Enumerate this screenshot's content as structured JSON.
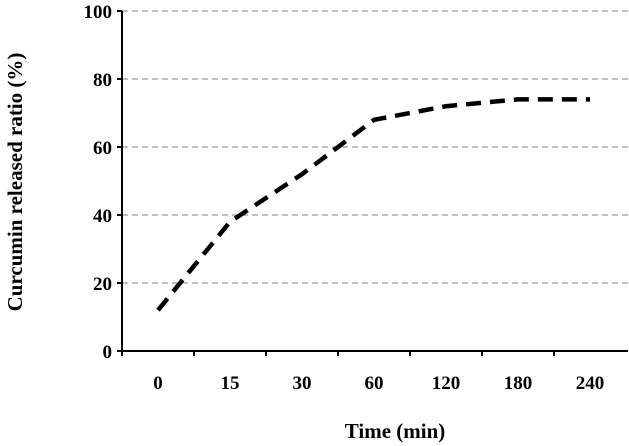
{
  "chart_data": {
    "type": "line",
    "categories": [
      "0",
      "15",
      "30",
      "60",
      "120",
      "180",
      "240"
    ],
    "series": [
      {
        "values": [
          12,
          38,
          52,
          68,
          72,
          74,
          74
        ]
      }
    ],
    "xlabel": "Time (min)",
    "ylabel": "Curcumin released ratio (%)",
    "ylim": [
      0,
      100
    ],
    "yticks": [
      0,
      20,
      40,
      60,
      80,
      100
    ],
    "grid": "horizontal-dashed",
    "line_style": "dashed",
    "line_color": "#000000",
    "grid_color": "#999999"
  }
}
